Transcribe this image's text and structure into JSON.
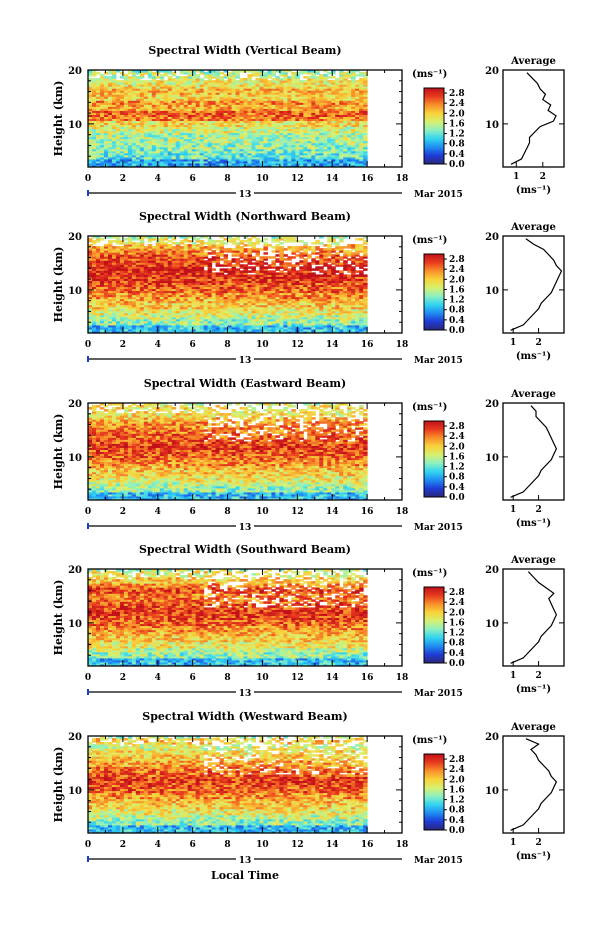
{
  "figure": {
    "x_label": "Local Time",
    "day_label": "13",
    "date_label": "Mar 2015",
    "y_label": "Height (km)",
    "unit_label": "(ms⁻¹)",
    "average_title": "Average",
    "average_xlabel": "(ms⁻¹)"
  },
  "colorbar": {
    "ticks": [
      "2.8",
      "2.4",
      "2.0",
      "1.6",
      "1.2",
      "0.8",
      "0.4",
      "0.0"
    ],
    "values": [
      2.8,
      2.4,
      2.0,
      1.6,
      1.2,
      0.8,
      0.4,
      0.0
    ],
    "range": [
      0.0,
      3.0
    ],
    "colors": [
      "#2a2a7a",
      "#1f3bd6",
      "#1f8ef2",
      "#32d4f0",
      "#8cf0c0",
      "#d8f070",
      "#f8d23a",
      "#f8902a",
      "#e83a1e",
      "#c0101a"
    ]
  },
  "chart_data": [
    {
      "type": "heatmap",
      "title": "Spectral Width (Vertical Beam)",
      "x_ticks": [
        "0",
        "2",
        "4",
        "6",
        "8",
        "10",
        "12",
        "14",
        "16",
        "18"
      ],
      "xlim": [
        0,
        18
      ],
      "y_ticks": [
        "20",
        "10"
      ],
      "ylim": [
        2,
        20
      ],
      "data_xlim": [
        0,
        16
      ],
      "colorbar_range": [
        0.0,
        3.0
      ],
      "average_profile": {
        "x_ticks": [
          "1",
          "2"
        ],
        "xlim": [
          0.5,
          2.8
        ],
        "height": [
          2.5,
          3.5,
          4.5,
          5.5,
          6.5,
          7.5,
          8.5,
          9.5,
          10.5,
          11.5,
          12.5,
          13.5,
          14.5,
          15.5,
          16.5,
          17.5,
          18.5,
          19.5
        ],
        "value": [
          0.8,
          1.2,
          1.3,
          1.4,
          1.5,
          1.5,
          1.7,
          1.9,
          2.4,
          2.5,
          2.2,
          2.3,
          2.0,
          2.1,
          1.9,
          1.8,
          1.6,
          1.4
        ]
      }
    },
    {
      "type": "heatmap",
      "title": "Spectral Width (Northward Beam)",
      "x_ticks": [
        "0",
        "2",
        "4",
        "6",
        "8",
        "10",
        "12",
        "14",
        "16",
        "18"
      ],
      "xlim": [
        0,
        18
      ],
      "y_ticks": [
        "20",
        "10"
      ],
      "ylim": [
        2,
        20
      ],
      "data_xlim": [
        0,
        16
      ],
      "colorbar_range": [
        0.0,
        3.0
      ],
      "average_profile": {
        "x_ticks": [
          "1",
          "2"
        ],
        "xlim": [
          0.6,
          3.0
        ],
        "height": [
          2.5,
          3.5,
          4.5,
          5.5,
          6.5,
          7.5,
          8.5,
          9.5,
          10.5,
          11.5,
          12.5,
          13.5,
          14.5,
          15.5,
          16.5,
          17.5,
          18.5,
          19.5
        ],
        "value": [
          0.9,
          1.4,
          1.6,
          1.8,
          2.0,
          2.1,
          2.3,
          2.5,
          2.6,
          2.7,
          2.8,
          2.9,
          2.7,
          2.6,
          2.4,
          2.2,
          1.8,
          1.5
        ]
      }
    },
    {
      "type": "heatmap",
      "title": "Spectral Width (Eastward Beam)",
      "x_ticks": [
        "0",
        "2",
        "4",
        "6",
        "8",
        "10",
        "12",
        "14",
        "16",
        "18"
      ],
      "xlim": [
        0,
        18
      ],
      "y_ticks": [
        "20",
        "10"
      ],
      "ylim": [
        2,
        20
      ],
      "data_xlim": [
        0,
        16
      ],
      "colorbar_range": [
        0.0,
        3.0
      ],
      "average_profile": {
        "x_ticks": [
          "1",
          "2"
        ],
        "xlim": [
          0.6,
          3.0
        ],
        "height": [
          2.5,
          3.5,
          4.5,
          5.5,
          6.5,
          7.5,
          8.5,
          9.5,
          10.5,
          11.5,
          12.5,
          13.5,
          14.5,
          15.5,
          16.5,
          17.5,
          18.5,
          19.5
        ],
        "value": [
          0.9,
          1.4,
          1.6,
          1.8,
          2.0,
          2.1,
          2.3,
          2.5,
          2.6,
          2.7,
          2.6,
          2.5,
          2.4,
          2.3,
          2.1,
          1.9,
          1.9,
          1.7
        ]
      }
    },
    {
      "type": "heatmap",
      "title": "Spectral Width (Southward Beam)",
      "x_ticks": [
        "0",
        "2",
        "4",
        "6",
        "8",
        "10",
        "12",
        "14",
        "16",
        "18"
      ],
      "xlim": [
        0,
        18
      ],
      "y_ticks": [
        "20",
        "10"
      ],
      "ylim": [
        2,
        20
      ],
      "data_xlim": [
        0,
        16
      ],
      "colorbar_range": [
        0.0,
        3.0
      ],
      "average_profile": {
        "x_ticks": [
          "1",
          "2"
        ],
        "xlim": [
          0.6,
          3.0
        ],
        "height": [
          2.5,
          3.5,
          4.5,
          5.5,
          6.5,
          7.5,
          8.5,
          9.5,
          10.5,
          11.5,
          12.5,
          13.5,
          14.5,
          15.5,
          16.5,
          17.5,
          18.5,
          19.5
        ],
        "value": [
          0.9,
          1.4,
          1.6,
          1.8,
          2.0,
          2.1,
          2.3,
          2.5,
          2.6,
          2.7,
          2.6,
          2.5,
          2.4,
          2.6,
          2.3,
          2.0,
          1.8,
          1.6
        ]
      }
    },
    {
      "type": "heatmap",
      "title": "Spectral Width (Westward Beam)",
      "x_ticks": [
        "0",
        "2",
        "4",
        "6",
        "8",
        "10",
        "12",
        "14",
        "16",
        "18"
      ],
      "xlim": [
        0,
        18
      ],
      "y_ticks": [
        "20",
        "10"
      ],
      "ylim": [
        2,
        20
      ],
      "data_xlim": [
        0,
        16
      ],
      "colorbar_range": [
        0.0,
        3.0
      ],
      "average_profile": {
        "x_ticks": [
          "1",
          "2"
        ],
        "xlim": [
          0.6,
          3.0
        ],
        "height": [
          2.5,
          3.5,
          4.5,
          5.5,
          6.5,
          7.5,
          8.5,
          9.5,
          10.5,
          11.5,
          12.5,
          13.5,
          14.5,
          15.5,
          16.5,
          17.5,
          18.5,
          19.5
        ],
        "value": [
          0.9,
          1.4,
          1.6,
          1.8,
          2.0,
          2.1,
          2.3,
          2.5,
          2.6,
          2.7,
          2.5,
          2.4,
          2.2,
          2.0,
          1.9,
          1.7,
          2.0,
          1.5
        ]
      }
    }
  ]
}
